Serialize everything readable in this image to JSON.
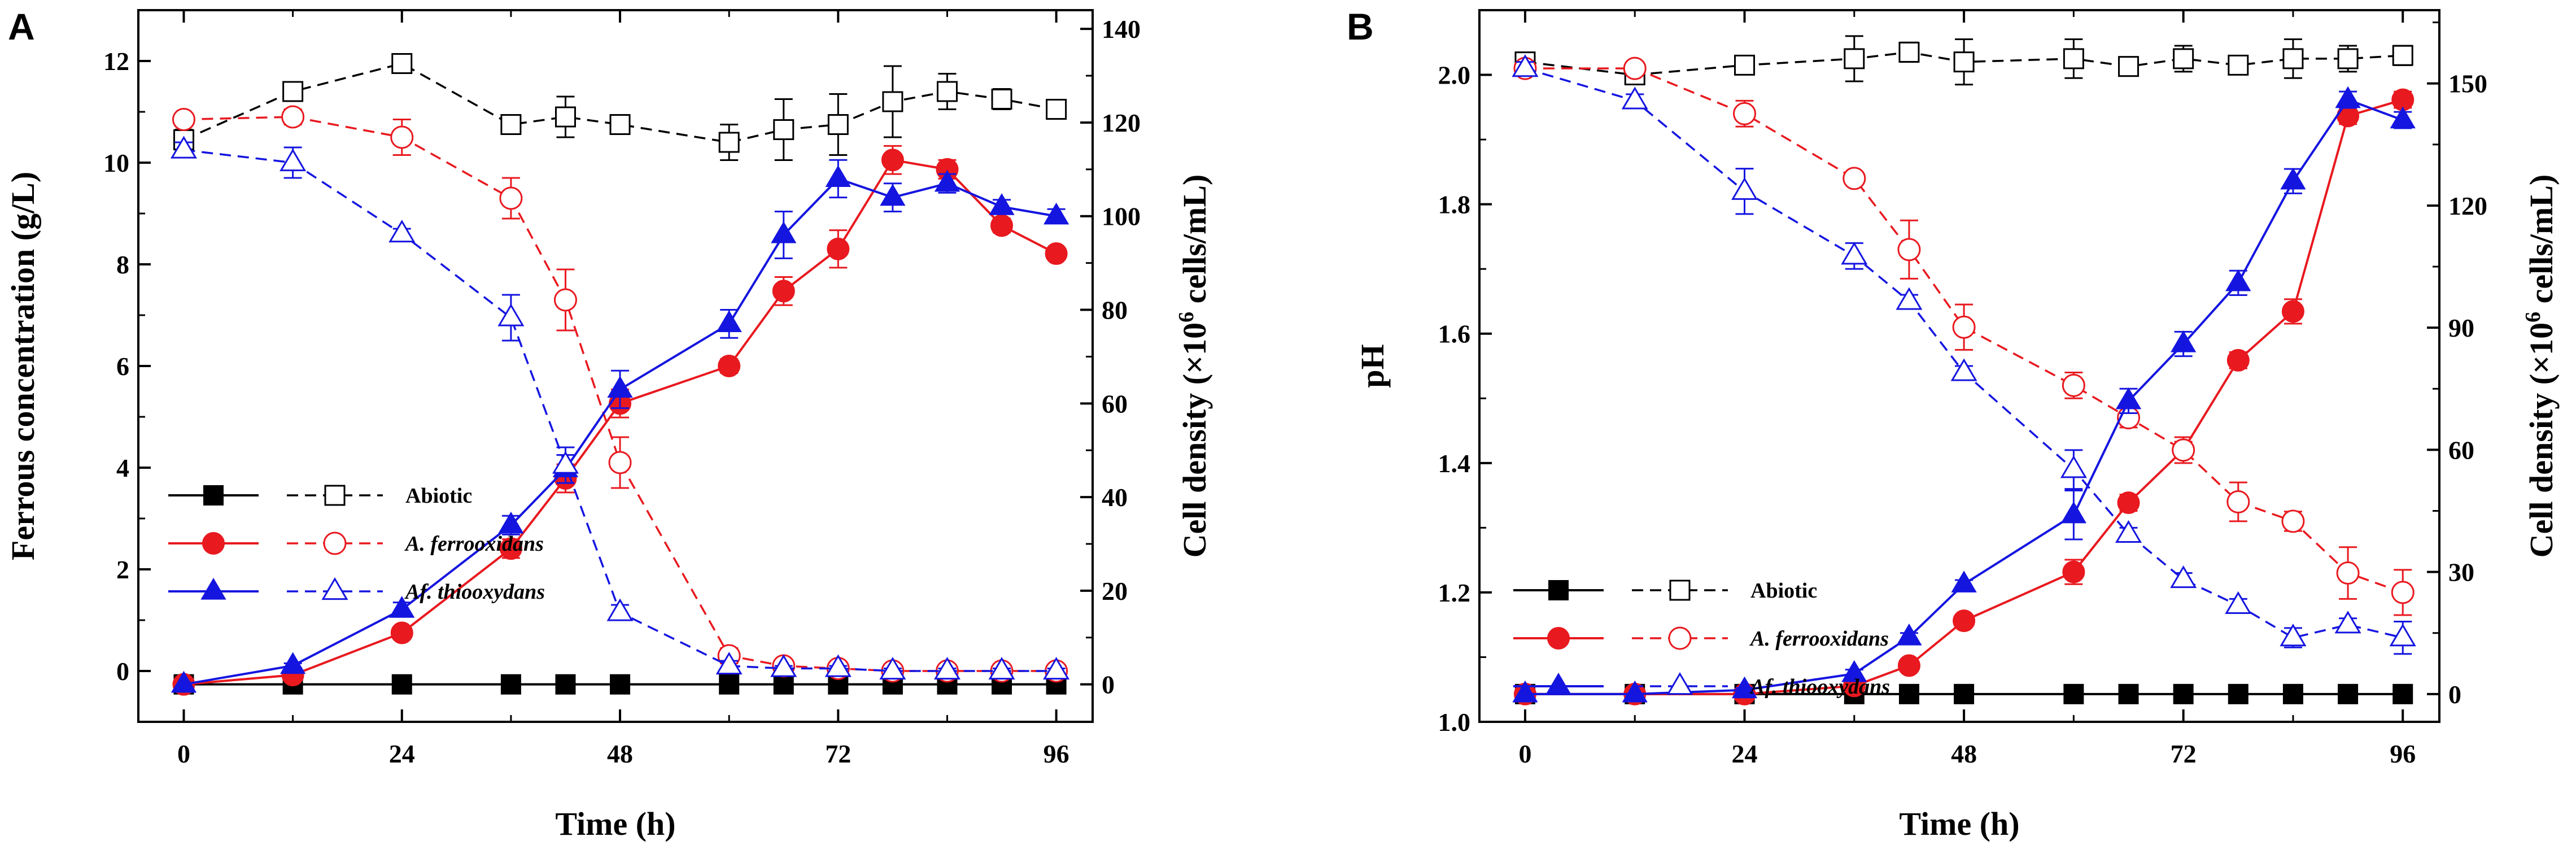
{
  "figure": {
    "panels": [
      {
        "letter": "A"
      },
      {
        "letter": "B"
      }
    ]
  },
  "chart_data": [
    {
      "panel": "A",
      "type": "line",
      "title": "",
      "xlabel": "Time (h)",
      "ylabel_left": "Ferrous concentration (g/L)",
      "ylabel_right_parts": [
        "Cell density (×10",
        "6",
        " cells/mL)"
      ],
      "x_ticks": [
        0,
        24,
        48,
        72,
        96
      ],
      "xlim": [
        -5,
        100
      ],
      "ylim_left": [
        -1,
        13
      ],
      "ylim_right": [
        -8,
        144
      ],
      "y_ticks_left": [
        0,
        2,
        4,
        6,
        8,
        10,
        12
      ],
      "y_ticks_right": [
        0,
        20,
        40,
        60,
        80,
        100,
        120,
        140
      ],
      "legend_position": "lower-left",
      "colors": {
        "abiotic": "#000000",
        "ferro": "#e8191f",
        "thio": "#1515e0"
      },
      "series": [
        {
          "name": "Abiotic",
          "legend": "Abiotic",
          "color": "#000000",
          "axis": "right",
          "style": "solid",
          "marker": "square-filled",
          "x": [
            0,
            12,
            24,
            36,
            42,
            48,
            60,
            66,
            72,
            78,
            84,
            90,
            96
          ],
          "y": [
            0,
            0,
            0,
            0,
            0,
            0,
            0,
            0,
            0,
            0,
            0,
            0,
            0
          ],
          "err": [
            0,
            0,
            0,
            0,
            0,
            0,
            0,
            0,
            0,
            0,
            0,
            0,
            0
          ]
        },
        {
          "name": "Abiotic (Fe2+)",
          "legend": "Abiotic",
          "color": "#000000",
          "axis": "left",
          "style": "dashed",
          "marker": "square-open",
          "x": [
            0,
            12,
            24,
            36,
            42,
            48,
            60,
            66,
            72,
            78,
            84,
            90,
            96
          ],
          "y": [
            10.45,
            11.4,
            11.95,
            10.75,
            10.9,
            10.75,
            10.4,
            10.65,
            10.75,
            11.2,
            11.4,
            11.25,
            11.05
          ],
          "err": [
            0.2,
            0.1,
            0.05,
            0.15,
            0.4,
            0.1,
            0.35,
            0.6,
            0.6,
            0.7,
            0.35,
            0.2,
            0.1
          ]
        },
        {
          "name": "A. ferrooxidans",
          "legend": "A. ferrooxidans",
          "color": "#e8191f",
          "axis": "right",
          "style": "solid",
          "marker": "circle-filled",
          "x": [
            0,
            12,
            24,
            36,
            42,
            48,
            60,
            66,
            72,
            78,
            84,
            90,
            96
          ],
          "y": [
            0,
            2,
            11,
            29,
            44,
            60,
            68,
            84,
            93,
            112,
            110,
            98,
            92
          ],
          "err": [
            0,
            0.5,
            1,
            2,
            3,
            3,
            1.5,
            3,
            4,
            3,
            2,
            1.5,
            1
          ]
        },
        {
          "name": "A. ferrooxidans (Fe2+)",
          "legend": "A. ferrooxidans",
          "color": "#e8191f",
          "axis": "left",
          "style": "dashed",
          "marker": "circle-open",
          "x": [
            0,
            12,
            24,
            36,
            42,
            48,
            60,
            66,
            72,
            78,
            84,
            90,
            96
          ],
          "y": [
            10.85,
            10.9,
            10.5,
            9.3,
            7.3,
            4.1,
            0.3,
            0.1,
            0.05,
            0.0,
            0.0,
            0.0,
            0.0
          ],
          "err": [
            0.05,
            0.15,
            0.35,
            0.4,
            0.6,
            0.5,
            0.15,
            0.1,
            0.05,
            0.05,
            0.05,
            0.05,
            0.05
          ]
        },
        {
          "name": "Af. thiooxydans",
          "legend": "Af. thiooxydans",
          "color": "#1515e0",
          "axis": "right",
          "style": "solid",
          "marker": "triangle-filled",
          "x": [
            0,
            12,
            24,
            36,
            42,
            48,
            60,
            66,
            72,
            78,
            84,
            90,
            96
          ],
          "y": [
            0,
            4,
            16,
            34,
            46,
            63,
            77,
            96,
            108,
            104,
            107,
            102,
            100
          ],
          "err": [
            0,
            0.5,
            1.5,
            2,
            3,
            4,
            3,
            5,
            4,
            3,
            2,
            1.5,
            1.5
          ]
        },
        {
          "name": "Af. thiooxydans (Fe2+)",
          "legend": "Af. thiooxydans",
          "color": "#1515e0",
          "axis": "left",
          "style": "dashed",
          "marker": "triangle-open",
          "x": [
            0,
            12,
            24,
            36,
            42,
            48,
            60,
            66,
            72,
            78,
            84,
            90,
            96
          ],
          "y": [
            10.25,
            10.0,
            8.6,
            6.95,
            4.05,
            1.15,
            0.1,
            0.05,
            0.05,
            0.0,
            0.0,
            0.0,
            0.0
          ],
          "err": [
            0.15,
            0.3,
            0.1,
            0.45,
            0.35,
            0.15,
            0.1,
            0.05,
            0.05,
            0.05,
            0.05,
            0.05,
            0.05
          ]
        }
      ]
    },
    {
      "panel": "B",
      "type": "line",
      "title": "",
      "xlabel": "Time (h)",
      "ylabel_left": "pH",
      "ylabel_right_parts": [
        "Cell density (×10",
        "6",
        " cells/mL)"
      ],
      "x_ticks": [
        0,
        24,
        48,
        72,
        96
      ],
      "xlim": [
        -5,
        100
      ],
      "ylim_left": [
        1.0,
        2.1
      ],
      "ylim_right": [
        -6.82,
        168
      ],
      "y_ticks_left": [
        1.0,
        1.2,
        1.4,
        1.6,
        1.8,
        2.0
      ],
      "y_ticks_right": [
        0,
        30,
        60,
        90,
        120,
        150
      ],
      "legend_position": "center-left",
      "colors": {
        "abiotic": "#000000",
        "ferro": "#e8191f",
        "thio": "#1515e0"
      },
      "series": [
        {
          "name": "Abiotic",
          "legend": "Abiotic",
          "color": "#000000",
          "axis": "right",
          "style": "solid",
          "marker": "square-filled",
          "x": [
            0,
            12,
            24,
            36,
            42,
            48,
            60,
            66,
            72,
            78,
            84,
            90,
            96
          ],
          "y": [
            0,
            0,
            0,
            0,
            0,
            0,
            0,
            0,
            0,
            0,
            0,
            0,
            0
          ],
          "err": [
            0,
            0,
            0,
            0,
            0,
            0,
            0,
            0,
            0,
            0,
            0,
            0,
            0
          ]
        },
        {
          "name": "Abiotic (pH)",
          "legend": "Abiotic",
          "color": "#000000",
          "axis": "left",
          "style": "dashed",
          "marker": "square-open",
          "x": [
            0,
            12,
            24,
            36,
            42,
            48,
            60,
            66,
            72,
            78,
            84,
            90,
            96
          ],
          "y": [
            2.02,
            2.0,
            2.015,
            2.025,
            2.035,
            2.02,
            2.025,
            2.013,
            2.025,
            2.015,
            2.025,
            2.025,
            2.03
          ],
          "err": [
            0.01,
            0.01,
            0.005,
            0.035,
            0.015,
            0.035,
            0.03,
            0.005,
            0.02,
            0.005,
            0.03,
            0.02,
            0.015
          ]
        },
        {
          "name": "A. ferrooxidans",
          "legend": "A. ferrooxidans",
          "color": "#e8191f",
          "axis": "right",
          "style": "solid",
          "marker": "circle-filled",
          "x": [
            0,
            12,
            24,
            36,
            42,
            48,
            60,
            66,
            72,
            78,
            84,
            90,
            96
          ],
          "y": [
            0,
            0,
            0,
            2,
            7,
            18,
            30,
            47,
            60,
            82,
            94,
            142,
            146
          ],
          "err": [
            0,
            0,
            0,
            0.5,
            1,
            1,
            3,
            2,
            2,
            2,
            3,
            2,
            2
          ]
        },
        {
          "name": "A. ferrooxidans (pH)",
          "legend": "A. ferrooxidans",
          "color": "#e8191f",
          "axis": "left",
          "style": "dashed",
          "marker": "circle-open",
          "x": [
            0,
            12,
            24,
            36,
            42,
            48,
            60,
            66,
            72,
            78,
            84,
            90,
            96
          ],
          "y": [
            2.01,
            2.01,
            1.94,
            1.84,
            1.73,
            1.61,
            1.52,
            1.47,
            1.42,
            1.34,
            1.31,
            1.23,
            1.2
          ],
          "err": [
            0.01,
            0.01,
            0.02,
            0.005,
            0.045,
            0.035,
            0.02,
            0.015,
            0.02,
            0.03,
            0.015,
            0.04,
            0.035
          ]
        },
        {
          "name": "Af. thiooxydans",
          "legend": "Af. thiooxydans",
          "color": "#1515e0",
          "axis": "right",
          "style": "solid",
          "marker": "triangle-filled",
          "x": [
            0,
            12,
            24,
            36,
            42,
            48,
            60,
            66,
            72,
            78,
            84,
            90,
            96
          ],
          "y": [
            0,
            0,
            1,
            5,
            14,
            27,
            44,
            72,
            86,
            101,
            126,
            146,
            141
          ],
          "err": [
            0,
            0,
            0.5,
            1,
            1,
            1,
            6,
            3,
            3,
            3,
            3,
            2,
            2
          ]
        },
        {
          "name": "Af. thiooxydans (pH)",
          "legend": "Af. thiooxydans",
          "color": "#1515e0",
          "axis": "left",
          "style": "dashed",
          "marker": "triangle-open",
          "x": [
            0,
            12,
            24,
            36,
            42,
            48,
            60,
            66,
            72,
            78,
            84,
            90,
            96
          ],
          "y": [
            2.01,
            1.96,
            1.82,
            1.72,
            1.65,
            1.54,
            1.39,
            1.29,
            1.22,
            1.18,
            1.13,
            1.15,
            1.13
          ],
          "err": [
            0.01,
            0.01,
            0.035,
            0.02,
            0.01,
            0.01,
            0.03,
            0.01,
            0.01,
            0.01,
            0.015,
            0.01,
            0.025
          ]
        }
      ]
    }
  ]
}
